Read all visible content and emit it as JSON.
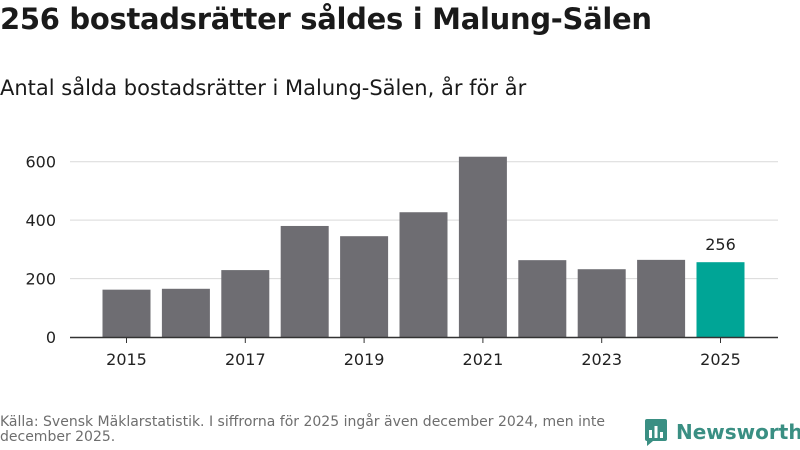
{
  "header": {
    "title": "256 bostadsrätter såldes i Malung-Sälen",
    "subtitle": "Antal sålda bostadsrätter i Malung-Sälen, år för år"
  },
  "footer": {
    "source": "Källa: Svensk Mäklarstatistik. I siffrorna för 2025 ingår även december 2024, men inte december 2025.",
    "brand": "Newsworthy"
  },
  "colors": {
    "bar": "#6e6d72",
    "highlight": "#00a596",
    "grid": "#d9d9d9",
    "axis": "#333333",
    "brand": "#3a8f83"
  },
  "chart_data": {
    "type": "bar",
    "title": "Antal sålda bostadsrätter i Malung-Sälen, år för år",
    "xlabel": "",
    "ylabel": "",
    "categories": [
      "2015",
      "2016",
      "2017",
      "2018",
      "2019",
      "2020",
      "2021",
      "2022",
      "2023",
      "2024",
      "2025"
    ],
    "values": [
      162,
      165,
      229,
      380,
      345,
      427,
      617,
      263,
      232,
      264,
      256
    ],
    "highlight_index": 10,
    "data_labels": [
      {
        "index": 10,
        "text": "256"
      }
    ],
    "x_tick_labels": [
      "2015",
      "2017",
      "2019",
      "2021",
      "2023",
      "2025"
    ],
    "y_ticks": [
      0,
      200,
      400,
      600
    ],
    "y_tick_labels": [
      "0",
      "200",
      "400",
      "600"
    ],
    "ylim": [
      0,
      640
    ],
    "grid": true,
    "legend": "none"
  }
}
